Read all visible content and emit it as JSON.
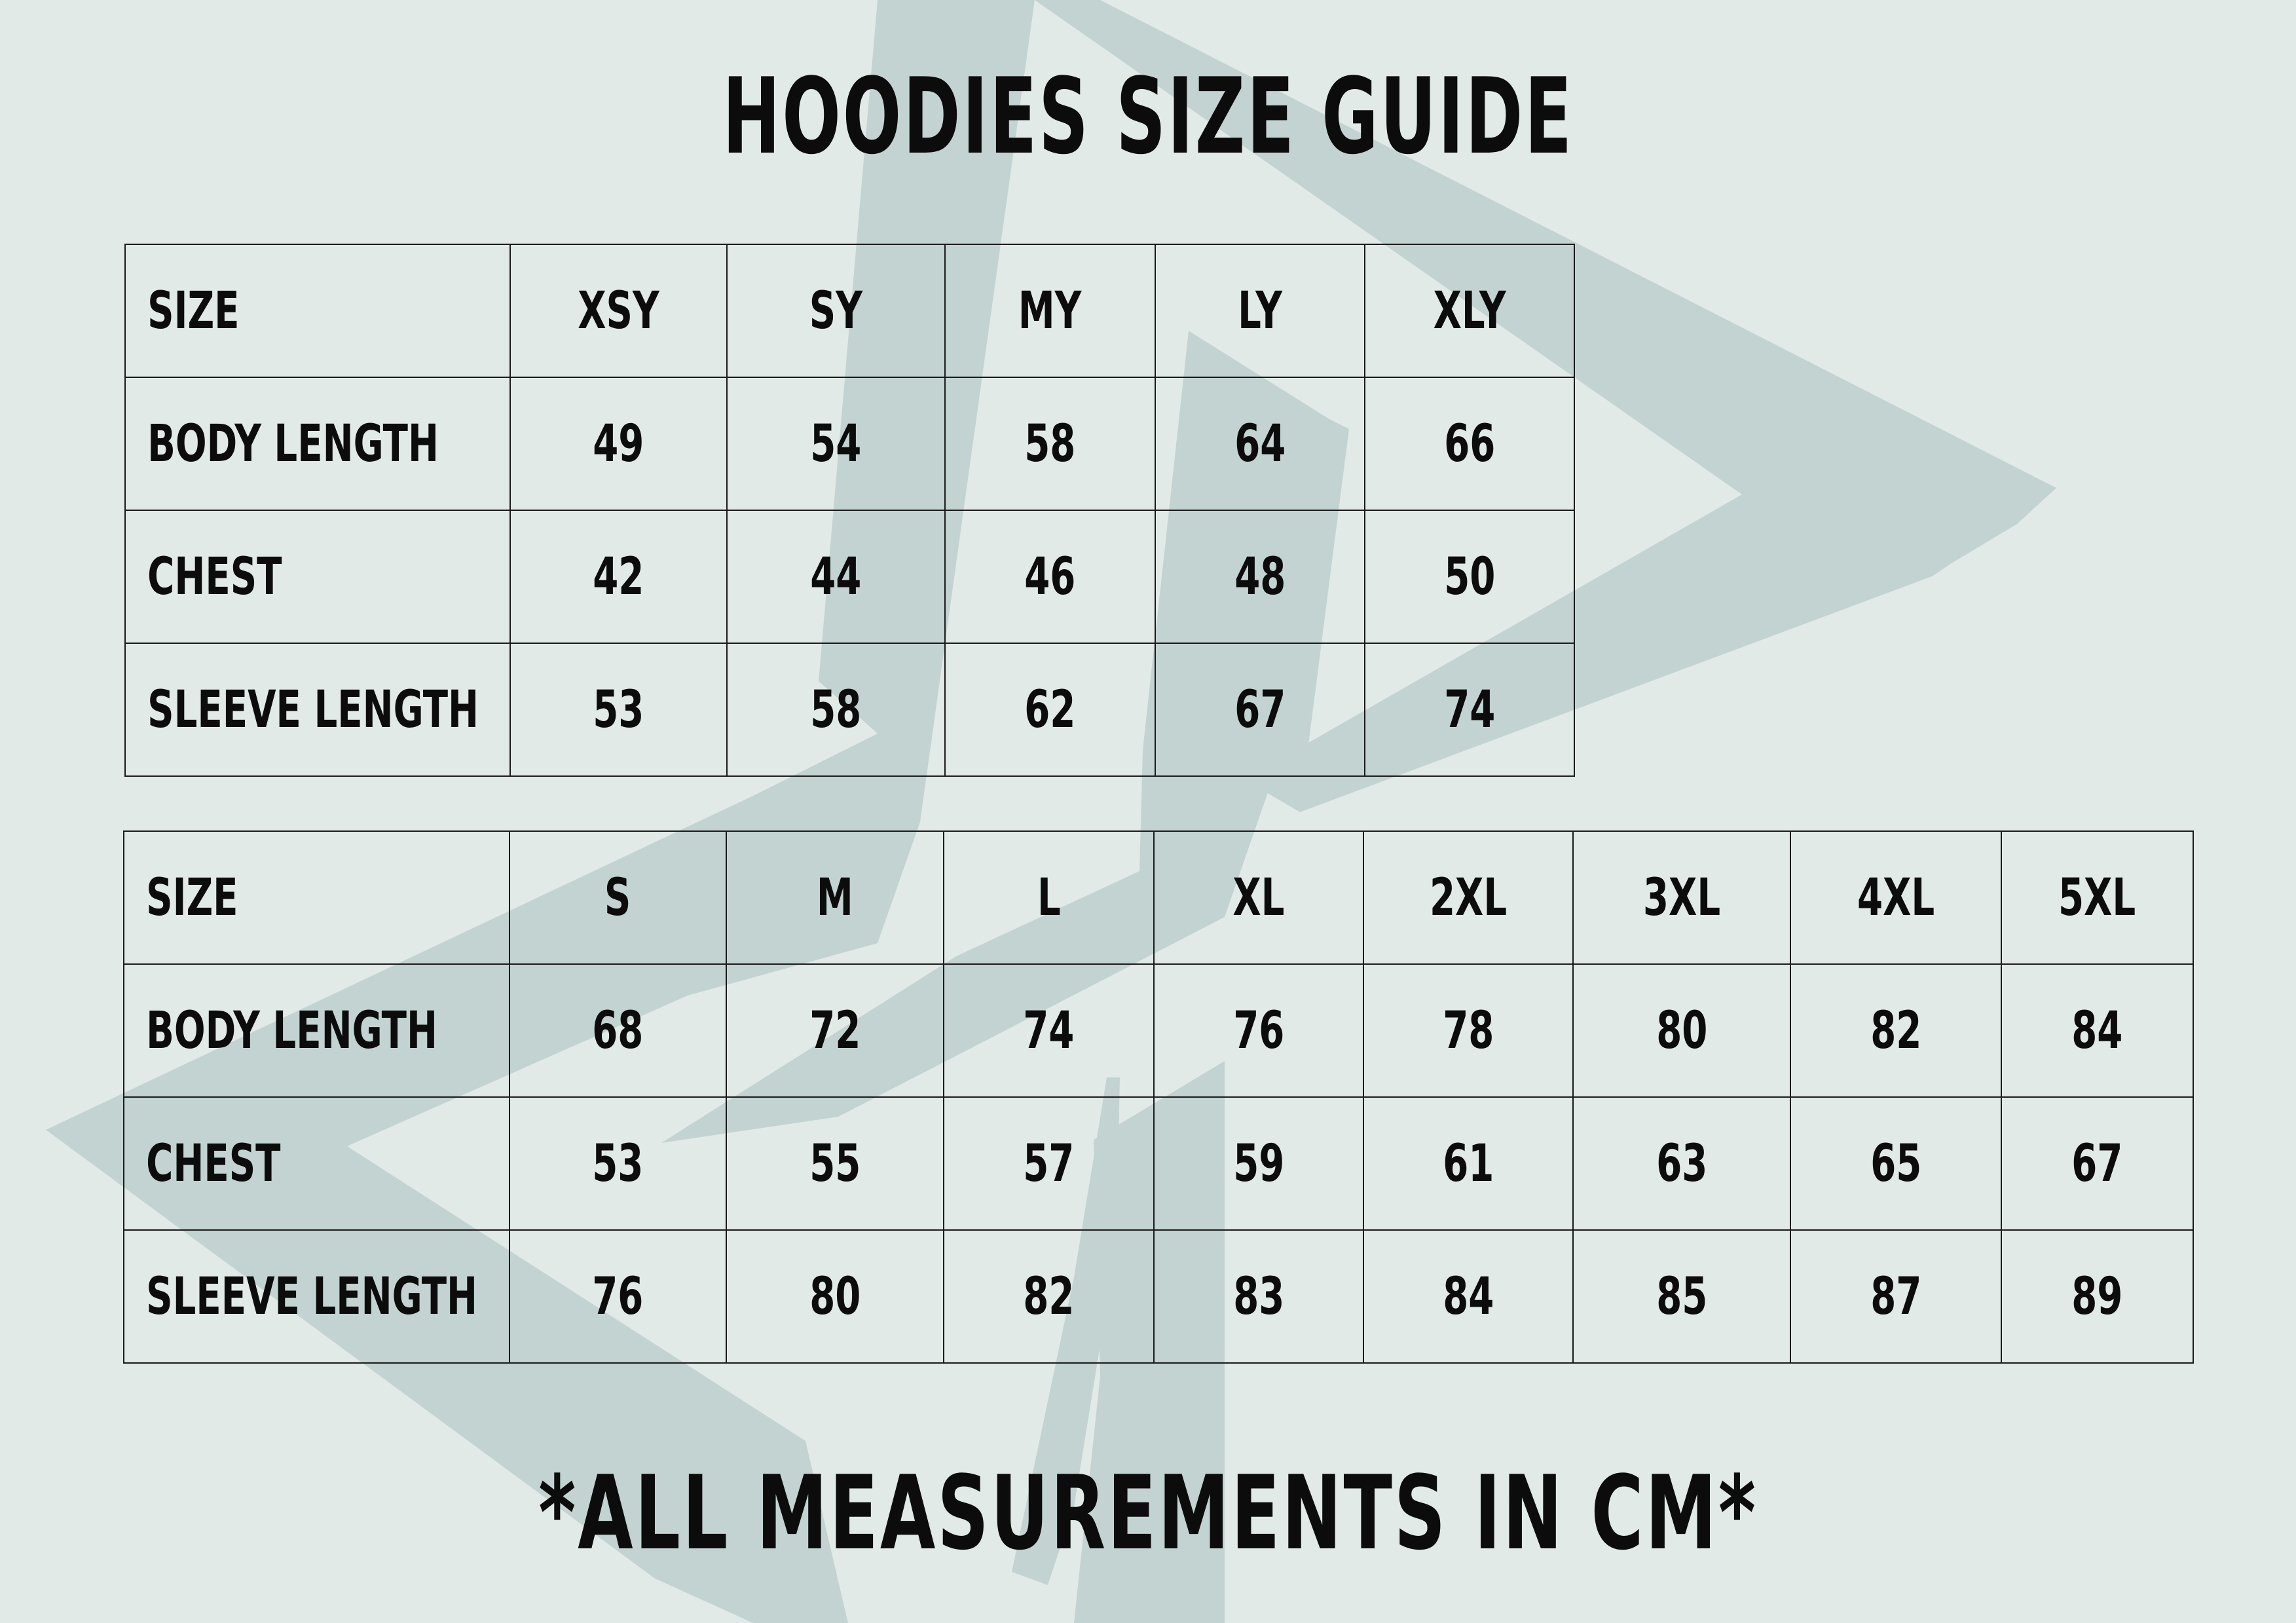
{
  "title": "HOODIES SIZE GUIDE",
  "youth_table": {
    "header": [
      "SIZE",
      "XSY",
      "SY",
      "MY",
      "LY",
      "XLY"
    ],
    "rows": [
      [
        "BODY LENGTH",
        "49",
        "54",
        "58",
        "64",
        "66"
      ],
      [
        "CHEST",
        "42",
        "44",
        "46",
        "48",
        "50"
      ],
      [
        "SLEEVE LENGTH",
        "53",
        "58",
        "62",
        "67",
        "74"
      ]
    ]
  },
  "adult_table": {
    "header": [
      "SIZE",
      "S",
      "M",
      "L",
      "XL",
      "2XL",
      "3XL",
      "4XL",
      "5XL"
    ],
    "rows": [
      [
        "BODY LENGTH",
        "68",
        "72",
        "74",
        "76",
        "78",
        "80",
        "82",
        "84"
      ],
      [
        "CHEST",
        "53",
        "55",
        "57",
        "59",
        "61",
        "63",
        "65",
        "67"
      ],
      [
        "SLEEVE LENGTH",
        "76",
        "80",
        "82",
        "83",
        "84",
        "85",
        "87",
        "89"
      ]
    ]
  },
  "footnote": "*ALL MEASUREMENTS IN CM*",
  "colors": {
    "background": "#e2eae7",
    "watermark": "#c3d3d1",
    "text": "#0c0c0c"
  },
  "icons": {
    "watermark": "double-chevron-logo"
  }
}
